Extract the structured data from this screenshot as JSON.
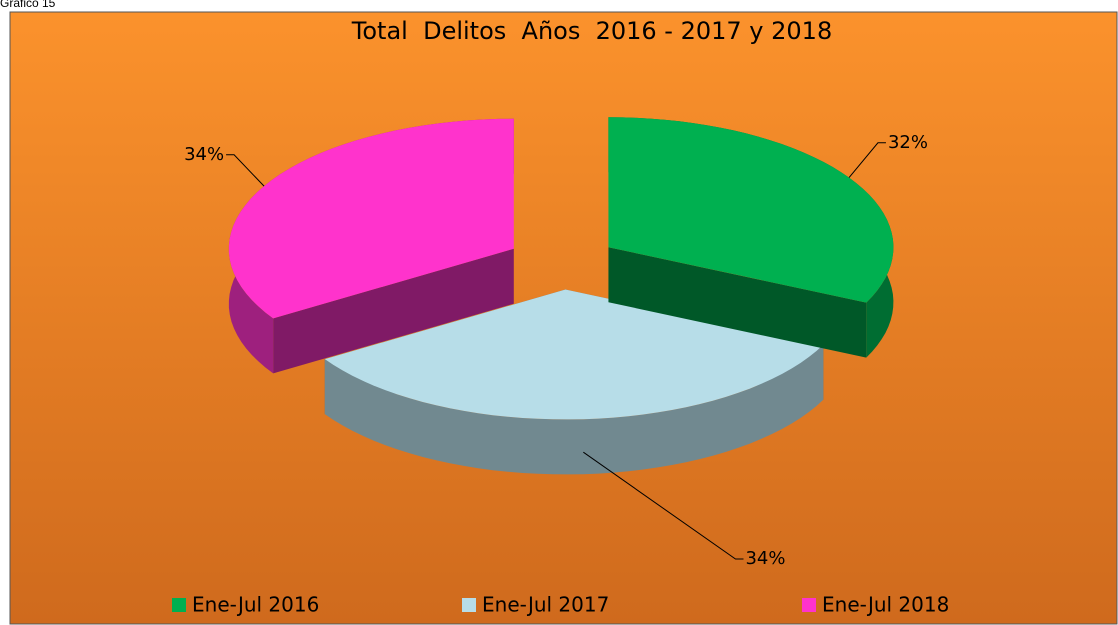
{
  "caption": "Gráfico 15",
  "chart_data": {
    "type": "pie3d",
    "title": "Total  Delitos  Años  2016 - 2017 y 2018",
    "categories": [
      "Ene-Jul 2016",
      "Ene-Jul 2017",
      "Ene-Jul 2018"
    ],
    "values": [
      32,
      34,
      34
    ],
    "value_labels": [
      "32%",
      "34%",
      "34%"
    ],
    "colors": [
      "#00b050",
      "#b7dde8",
      "#ff33cc"
    ],
    "legend": "bottom"
  }
}
